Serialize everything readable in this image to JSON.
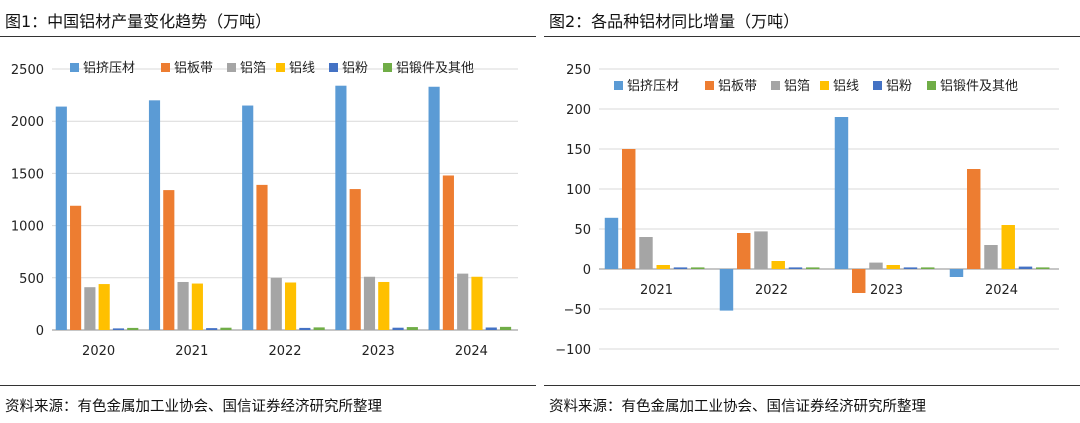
{
  "figures": [
    {
      "title": "图1：中国铝材产量变化趋势（万吨）",
      "source": "资料来源：有色金属加工业协会、国信证券经济研究所整理",
      "chart_data": {
        "type": "bar",
        "title": "中国铝材产量变化趋势（万吨）",
        "xlabel": "",
        "ylabel": "",
        "categories": [
          "2020",
          "2021",
          "2022",
          "2023",
          "2024"
        ],
        "ylim": [
          0,
          2500
        ],
        "yticks": [
          0,
          500,
          1000,
          1500,
          2000,
          2500
        ],
        "grid": true,
        "legend_position": "top",
        "series": [
          {
            "name": "铝挤压材",
            "color": "#5B9BD5",
            "values": [
              2140,
              2200,
              2150,
              2340,
              2330
            ]
          },
          {
            "name": "铝板带",
            "color": "#ED7D31",
            "values": [
              1190,
              1340,
              1390,
              1350,
              1480
            ]
          },
          {
            "name": "铝箔",
            "color": "#A5A5A5",
            "values": [
              410,
              460,
              500,
              510,
              540
            ]
          },
          {
            "name": "铝线",
            "color": "#FFC000",
            "values": [
              440,
              445,
              455,
              460,
              510
            ]
          },
          {
            "name": "铝粉",
            "color": "#4472C4",
            "values": [
              15,
              18,
              20,
              22,
              24
            ]
          },
          {
            "name": "铝锻件及其他",
            "color": "#70AD47",
            "values": [
              20,
              22,
              25,
              28,
              30
            ]
          }
        ]
      }
    },
    {
      "title": "图2：各品种铝材同比增量（万吨）",
      "source": "资料来源：有色金属加工业协会、国信证券经济研究所整理",
      "chart_data": {
        "type": "bar",
        "title": "各品种铝材同比增量（万吨）",
        "xlabel": "",
        "ylabel": "",
        "categories": [
          "2021",
          "2022",
          "2023",
          "2024"
        ],
        "ylim": [
          -100,
          250
        ],
        "yticks": [
          -100,
          -50,
          0,
          50,
          100,
          150,
          200,
          250
        ],
        "ytick_labels": [
          "−100",
          "−50",
          "0",
          "50",
          "100",
          "150",
          "200",
          "250"
        ],
        "grid": true,
        "legend_position": "top",
        "series": [
          {
            "name": "铝挤压材",
            "color": "#5B9BD5",
            "values": [
              64,
              -52,
              190,
              -10
            ]
          },
          {
            "name": "铝板带",
            "color": "#ED7D31",
            "values": [
              150,
              45,
              -30,
              125
            ]
          },
          {
            "name": "铝箔",
            "color": "#A5A5A5",
            "values": [
              40,
              47,
              8,
              30
            ]
          },
          {
            "name": "铝线",
            "color": "#FFC000",
            "values": [
              5,
              10,
              5,
              55
            ]
          },
          {
            "name": "铝粉",
            "color": "#4472C4",
            "values": [
              1,
              0,
              1,
              3
            ]
          },
          {
            "name": "铝锻件及其他",
            "color": "#70AD47",
            "values": [
              1,
              0,
              2,
              2
            ]
          }
        ]
      }
    }
  ]
}
